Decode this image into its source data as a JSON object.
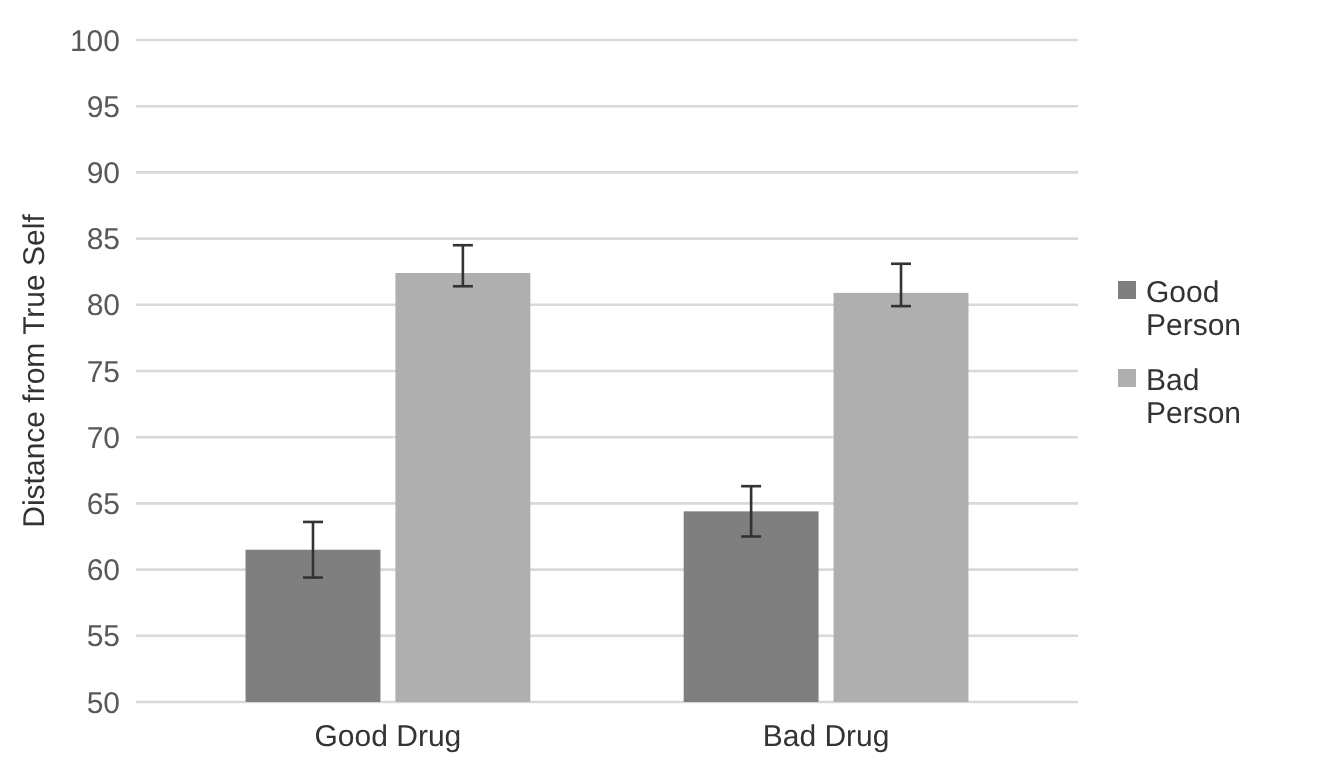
{
  "chart_data": {
    "type": "bar",
    "ylabel": "Distance from True Self",
    "categories": [
      "Good Drug",
      "Bad Drug"
    ],
    "series": [
      {
        "name": "Good Person",
        "color": "#7f7f7f",
        "values": [
          61.5,
          64.4
        ],
        "errors": [
          [
            59.4,
            63.6
          ],
          [
            62.5,
            66.3
          ]
        ]
      },
      {
        "name": "Bad Person",
        "color": "#afafaf",
        "values": [
          82.4,
          80.9
        ],
        "errors": [
          [
            81.4,
            84.5
          ],
          [
            79.9,
            83.1
          ]
        ]
      }
    ],
    "ylim": [
      50,
      100
    ],
    "yticks": [
      50,
      55,
      60,
      65,
      70,
      75,
      80,
      85,
      90,
      95,
      100
    ],
    "grid": "y",
    "legend": "right"
  }
}
